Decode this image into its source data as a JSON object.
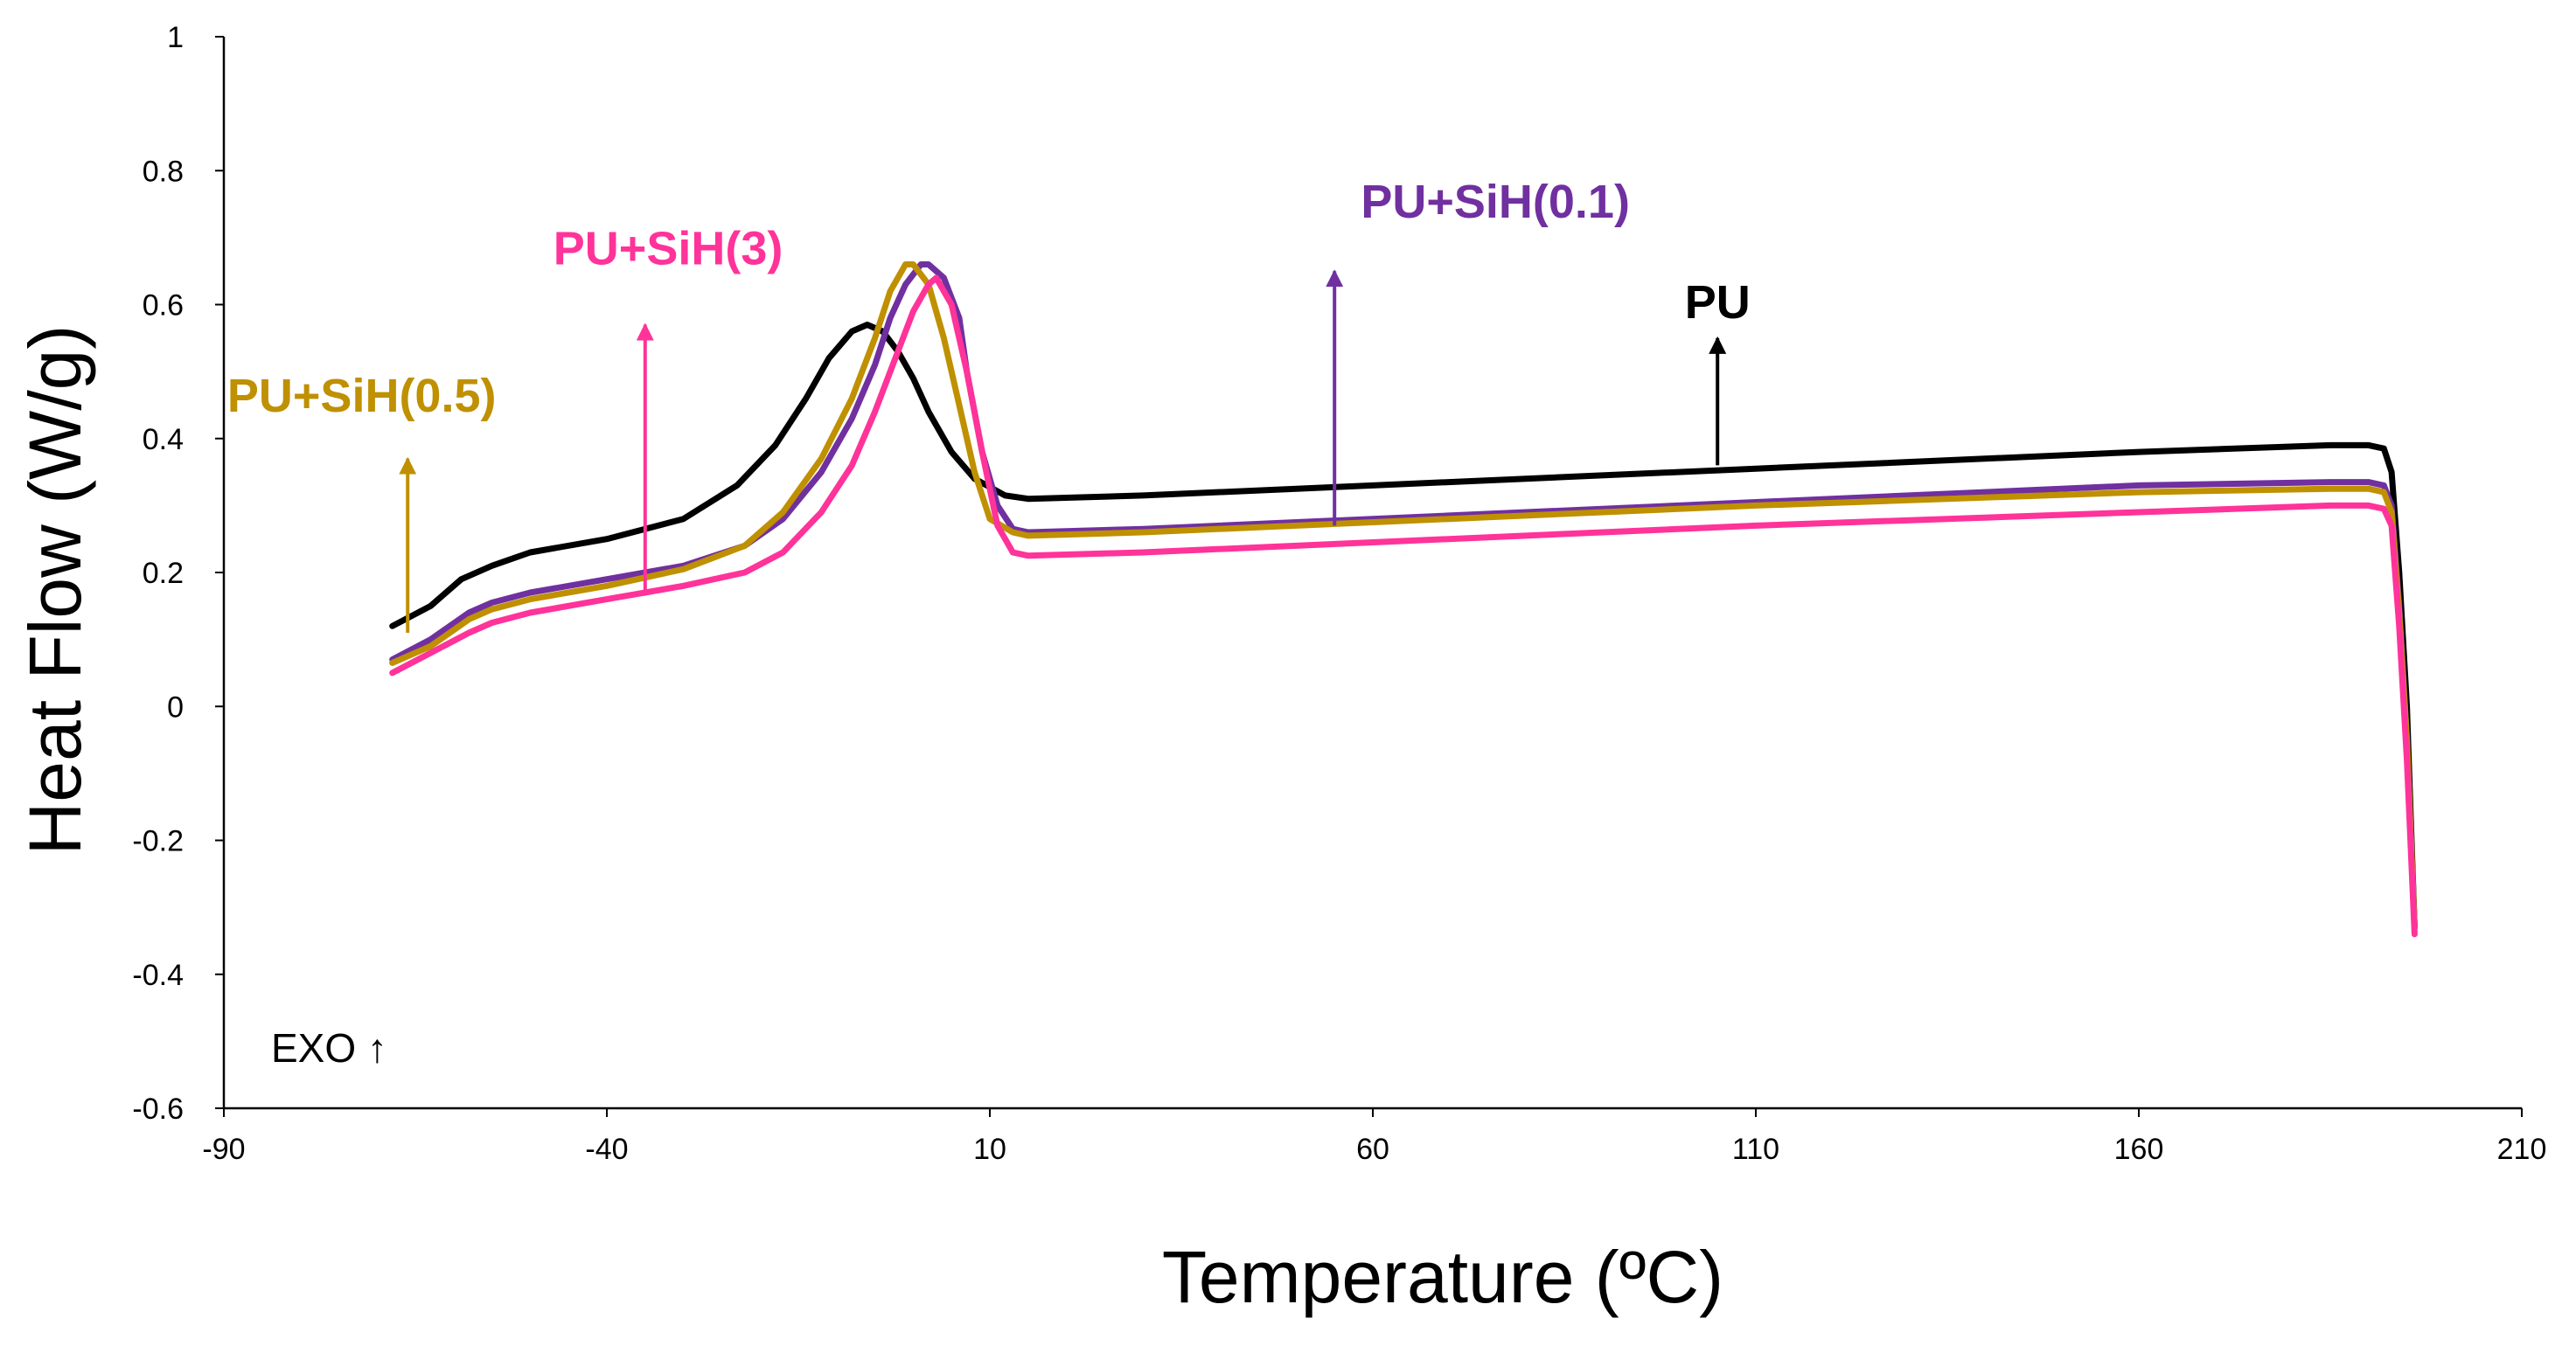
{
  "chart_data": {
    "type": "line",
    "title": "",
    "xlabel": "Temperature (ºC)",
    "ylabel": "Heat Flow (W/g)",
    "xlim": [
      -90,
      210
    ],
    "ylim": [
      -0.6,
      1
    ],
    "x_ticks": [
      "-90",
      "-40",
      "10",
      "60",
      "110",
      "160",
      "210"
    ],
    "y_ticks": [
      "-0.6",
      "-0.4",
      "-0.2",
      "0",
      "0.2",
      "0.4",
      "0.6",
      "0.8",
      "1"
    ],
    "grid": false,
    "annotation": "EXO ↑",
    "series": [
      {
        "name": "PU",
        "label": "PU",
        "color": "#000000",
        "points": [
          [
            -68,
            0.12
          ],
          [
            -63,
            0.15
          ],
          [
            -59,
            0.19
          ],
          [
            -55,
            0.21
          ],
          [
            -50,
            0.23
          ],
          [
            -40,
            0.25
          ],
          [
            -30,
            0.28
          ],
          [
            -23,
            0.33
          ],
          [
            -18,
            0.39
          ],
          [
            -14,
            0.46
          ],
          [
            -11,
            0.52
          ],
          [
            -8,
            0.56
          ],
          [
            -6,
            0.57
          ],
          [
            -4,
            0.56
          ],
          [
            -2,
            0.53
          ],
          [
            0,
            0.49
          ],
          [
            2,
            0.44
          ],
          [
            5,
            0.38
          ],
          [
            8,
            0.34
          ],
          [
            12,
            0.315
          ],
          [
            15,
            0.31
          ],
          [
            30,
            0.315
          ],
          [
            60,
            0.33
          ],
          [
            110,
            0.355
          ],
          [
            160,
            0.38
          ],
          [
            185,
            0.39
          ],
          [
            190,
            0.39
          ],
          [
            192,
            0.385
          ],
          [
            193,
            0.35
          ],
          [
            194,
            0.2
          ],
          [
            195,
            0.0
          ],
          [
            196,
            -0.33
          ]
        ],
        "label_x": 105,
        "label_y": 0.58,
        "arrow_x": 105,
        "arrow_from": 0.36,
        "arrow_to": 0.55
      },
      {
        "name": "PU+SiH(0.1)",
        "label": "PU+SiH(0.1)",
        "color": "#7030a0",
        "points": [
          [
            -68,
            0.07
          ],
          [
            -63,
            0.1
          ],
          [
            -58,
            0.14
          ],
          [
            -55,
            0.155
          ],
          [
            -50,
            0.17
          ],
          [
            -40,
            0.19
          ],
          [
            -30,
            0.21
          ],
          [
            -22,
            0.24
          ],
          [
            -17,
            0.28
          ],
          [
            -12,
            0.35
          ],
          [
            -8,
            0.43
          ],
          [
            -5,
            0.51
          ],
          [
            -3,
            0.58
          ],
          [
            -1,
            0.63
          ],
          [
            1,
            0.66
          ],
          [
            2,
            0.66
          ],
          [
            4,
            0.64
          ],
          [
            6,
            0.58
          ],
          [
            7,
            0.5
          ],
          [
            9,
            0.38
          ],
          [
            11,
            0.3
          ],
          [
            13,
            0.265
          ],
          [
            15,
            0.26
          ],
          [
            30,
            0.265
          ],
          [
            60,
            0.28
          ],
          [
            110,
            0.305
          ],
          [
            160,
            0.33
          ],
          [
            185,
            0.335
          ],
          [
            190,
            0.335
          ],
          [
            192,
            0.33
          ],
          [
            193,
            0.3
          ],
          [
            194,
            0.15
          ],
          [
            195,
            -0.05
          ],
          [
            196,
            -0.33
          ]
        ],
        "label_x": 76,
        "label_y": 0.73,
        "arrow_x": 55,
        "arrow_from": 0.27,
        "arrow_to": 0.65
      },
      {
        "name": "PU+SiH(0.5)",
        "label": "PU+SiH(0.5)",
        "color": "#bf9000",
        "points": [
          [
            -68,
            0.065
          ],
          [
            -63,
            0.09
          ],
          [
            -58,
            0.13
          ],
          [
            -55,
            0.145
          ],
          [
            -50,
            0.16
          ],
          [
            -40,
            0.18
          ],
          [
            -30,
            0.205
          ],
          [
            -22,
            0.24
          ],
          [
            -17,
            0.29
          ],
          [
            -12,
            0.37
          ],
          [
            -8,
            0.46
          ],
          [
            -5,
            0.55
          ],
          [
            -3,
            0.62
          ],
          [
            -1,
            0.66
          ],
          [
            0,
            0.66
          ],
          [
            2,
            0.63
          ],
          [
            4,
            0.55
          ],
          [
            6,
            0.45
          ],
          [
            8,
            0.35
          ],
          [
            10,
            0.28
          ],
          [
            13,
            0.26
          ],
          [
            15,
            0.255
          ],
          [
            30,
            0.26
          ],
          [
            60,
            0.275
          ],
          [
            110,
            0.3
          ],
          [
            160,
            0.32
          ],
          [
            185,
            0.325
          ],
          [
            190,
            0.325
          ],
          [
            192,
            0.32
          ],
          [
            193,
            0.29
          ],
          [
            194,
            0.14
          ],
          [
            195,
            -0.05
          ],
          [
            196,
            -0.33
          ]
        ],
        "label_x": -72,
        "label_y": 0.44,
        "arrow_x": -66,
        "arrow_from": 0.11,
        "arrow_to": 0.37
      },
      {
        "name": "PU+SiH(3)",
        "label": "PU+SiH(3)",
        "color": "#ff3399",
        "points": [
          [
            -68,
            0.05
          ],
          [
            -63,
            0.08
          ],
          [
            -58,
            0.11
          ],
          [
            -55,
            0.125
          ],
          [
            -50,
            0.14
          ],
          [
            -40,
            0.16
          ],
          [
            -30,
            0.18
          ],
          [
            -22,
            0.2
          ],
          [
            -17,
            0.23
          ],
          [
            -12,
            0.29
          ],
          [
            -8,
            0.36
          ],
          [
            -5,
            0.44
          ],
          [
            -2,
            0.53
          ],
          [
            0,
            0.59
          ],
          [
            2,
            0.63
          ],
          [
            3,
            0.64
          ],
          [
            5,
            0.6
          ],
          [
            7,
            0.5
          ],
          [
            9,
            0.38
          ],
          [
            11,
            0.27
          ],
          [
            13,
            0.23
          ],
          [
            15,
            0.225
          ],
          [
            30,
            0.23
          ],
          [
            60,
            0.245
          ],
          [
            110,
            0.27
          ],
          [
            160,
            0.29
          ],
          [
            185,
            0.3
          ],
          [
            190,
            0.3
          ],
          [
            192,
            0.295
          ],
          [
            193,
            0.27
          ],
          [
            194,
            0.12
          ],
          [
            195,
            -0.08
          ],
          [
            196,
            -0.34
          ]
        ],
        "label_x": -32,
        "label_y": 0.66,
        "arrow_x": -35,
        "arrow_from": 0.17,
        "arrow_to": 0.57
      }
    ]
  }
}
